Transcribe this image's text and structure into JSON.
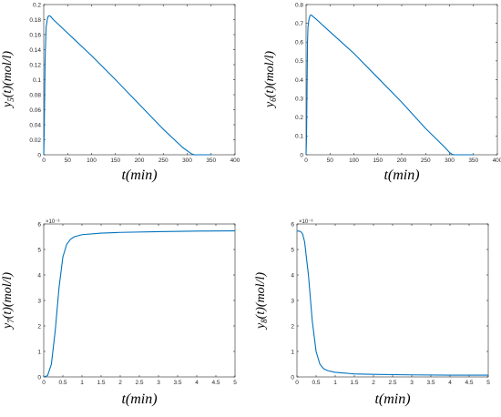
{
  "chart_data": [
    {
      "type": "line",
      "xlim": [
        0,
        400
      ],
      "ylim": [
        0,
        0.2
      ],
      "xticks": [
        "0",
        "50",
        "100",
        "150",
        "200",
        "250",
        "300",
        "350",
        "400"
      ],
      "yticks": [
        "0",
        "0.02",
        "0.04",
        "0.06",
        "0.08",
        "0.1",
        "0.12",
        "0.14",
        "0.16",
        "0.18",
        "0.2"
      ],
      "ylabel_main": "y",
      "ylabel_sub": "5",
      "ylabel_rest": "(t)(mol/l)",
      "xlabel": "t(min)",
      "exponent": "",
      "color": "#0072BD",
      "series": [
        {
          "x": [
            0,
            1,
            2,
            3,
            5,
            8,
            10,
            13,
            16,
            20,
            40,
            60,
            100,
            150,
            200,
            250,
            290,
            305,
            310,
            315,
            350
          ],
          "y": [
            0,
            0.03,
            0.08,
            0.13,
            0.17,
            0.182,
            0.185,
            0.185,
            0.183,
            0.18,
            0.168,
            0.156,
            0.132,
            0.1,
            0.067,
            0.034,
            0.01,
            0.003,
            0.001,
            0.0,
            0.0
          ]
        }
      ]
    },
    {
      "type": "line",
      "xlim": [
        0,
        400
      ],
      "ylim": [
        0,
        0.8
      ],
      "xticks": [
        "0",
        "50",
        "100",
        "150",
        "200",
        "250",
        "300",
        "350",
        "400"
      ],
      "yticks": [
        "0",
        "0.1",
        "0.2",
        "0.3",
        "0.4",
        "0.5",
        "0.6",
        "0.7",
        "0.8"
      ],
      "ylabel_main": "y",
      "ylabel_sub": "6",
      "ylabel_rest": "(t)(mol/l)",
      "xlabel": "t(min)",
      "exponent": "",
      "color": "#0072BD",
      "series": [
        {
          "x": [
            0,
            1,
            2,
            3,
            4,
            6,
            8,
            10,
            12,
            15,
            20,
            50,
            100,
            150,
            200,
            250,
            290,
            300,
            305,
            310,
            350
          ],
          "y": [
            0,
            0.1,
            0.35,
            0.6,
            0.68,
            0.72,
            0.74,
            0.745,
            0.742,
            0.735,
            0.725,
            0.655,
            0.54,
            0.41,
            0.28,
            0.14,
            0.04,
            0.012,
            0.003,
            0.0,
            0.0
          ]
        }
      ]
    },
    {
      "type": "line",
      "xlim": [
        0,
        5
      ],
      "ylim": [
        0,
        6
      ],
      "xticks": [
        "0",
        "0.5",
        "1",
        "1.5",
        "2",
        "2.5",
        "3",
        "3.5",
        "4",
        "4.5",
        "5"
      ],
      "yticks": [
        "0",
        "1",
        "2",
        "3",
        "4",
        "5",
        "6"
      ],
      "ylabel_main": "y",
      "ylabel_sub": "7",
      "ylabel_rest": "(t)(mol/l)",
      "xlabel": "t(min)",
      "exponent": "×10⁻³",
      "color": "#0072BD",
      "series": [
        {
          "x": [
            0,
            0.1,
            0.2,
            0.3,
            0.4,
            0.5,
            0.6,
            0.7,
            0.8,
            1.0,
            1.5,
            2,
            3,
            4,
            5
          ],
          "y": [
            0,
            0.05,
            0.5,
            1.8,
            3.5,
            4.7,
            5.2,
            5.4,
            5.5,
            5.58,
            5.64,
            5.67,
            5.7,
            5.72,
            5.73
          ]
        }
      ]
    },
    {
      "type": "line",
      "xlim": [
        0,
        5
      ],
      "ylim": [
        0,
        6
      ],
      "xticks": [
        "0",
        "0.5",
        "1",
        "1.5",
        "2",
        "2.5",
        "3",
        "3.5",
        "4",
        "4.5",
        "5"
      ],
      "yticks": [
        "0",
        "1",
        "2",
        "3",
        "4",
        "5",
        "6"
      ],
      "ylabel_main": "y",
      "ylabel_sub": "8",
      "ylabel_rest": "(t)(mol/l)",
      "xlabel": "t(min)",
      "exponent": "×10⁻³",
      "color": "#0072BD",
      "series": [
        {
          "x": [
            0,
            0.05,
            0.1,
            0.15,
            0.2,
            0.3,
            0.4,
            0.5,
            0.6,
            0.7,
            0.8,
            1.0,
            1.5,
            2,
            3,
            4,
            5
          ],
          "y": [
            5.72,
            5.72,
            5.7,
            5.6,
            5.3,
            4.0,
            2.2,
            1.0,
            0.5,
            0.32,
            0.25,
            0.18,
            0.12,
            0.1,
            0.08,
            0.07,
            0.07
          ]
        }
      ]
    }
  ]
}
